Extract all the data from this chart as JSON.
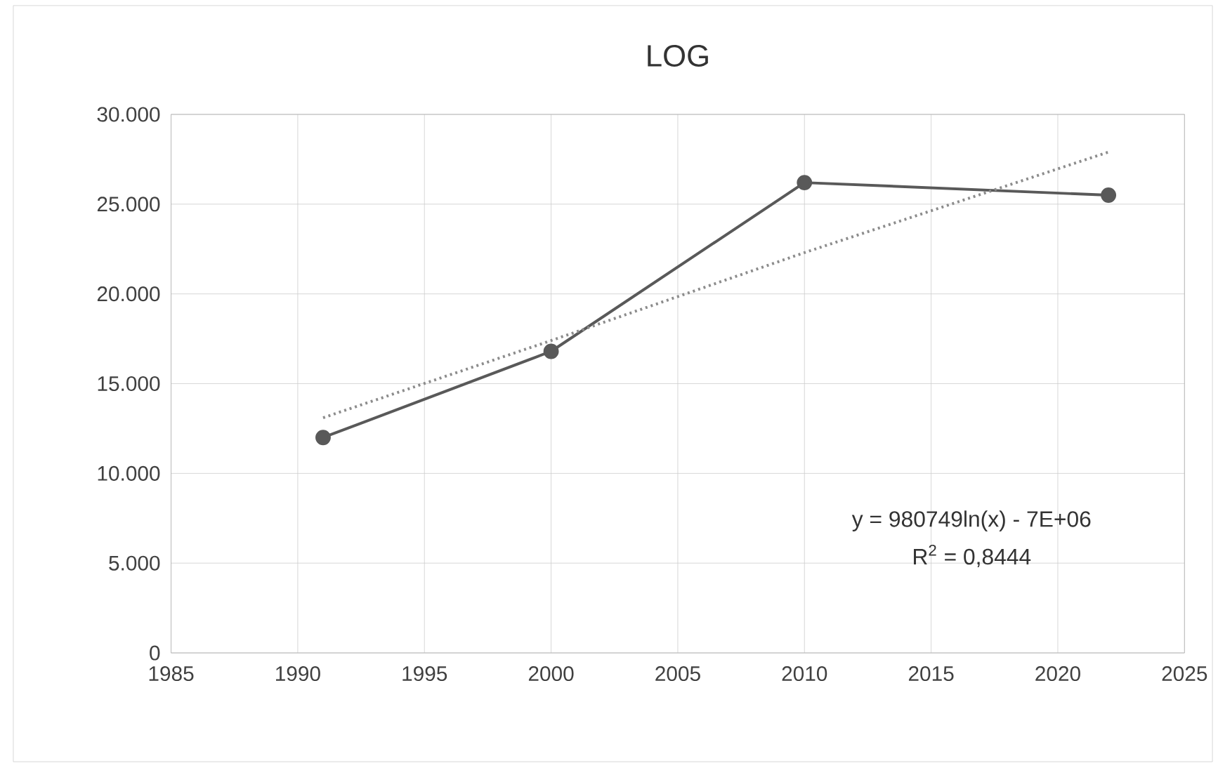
{
  "chart_data": {
    "type": "line",
    "title": "LOG",
    "x": [
      1991,
      2000,
      2010,
      2022
    ],
    "series": [
      {
        "color": "#595959",
        "values": [
          12000,
          16800,
          26200,
          25500
        ],
        "marker": "circle",
        "line_style": "solid"
      },
      {
        "type": "line",
        "color": "#8c8c8c",
        "x": [
          1991,
          2000,
          2010,
          2022
        ],
        "values": [
          13100,
          17400,
          22300,
          27900
        ],
        "marker": "none",
        "line_style": "dotted"
      }
    ],
    "xlim": [
      1985,
      2025
    ],
    "xticks": [
      1985,
      1990,
      1995,
      2000,
      2005,
      2010,
      2015,
      2020,
      2025
    ],
    "ylim": [
      0,
      30000
    ],
    "yticks": [
      0,
      {
        "value": 5000,
        "label": "5.000"
      },
      {
        "value": 10000,
        "label": "10.000"
      },
      {
        "value": 15000,
        "label": "15.000"
      },
      {
        "value": 20000,
        "label": "20.000"
      },
      {
        "value": 25000,
        "label": "25.000"
      },
      {
        "value": 30000,
        "label": "30.000"
      }
    ],
    "grid": true,
    "annotations": [
      "y = 980749ln(x) - 7E+06",
      "R$^{2}$ = 0,8444"
    ]
  }
}
